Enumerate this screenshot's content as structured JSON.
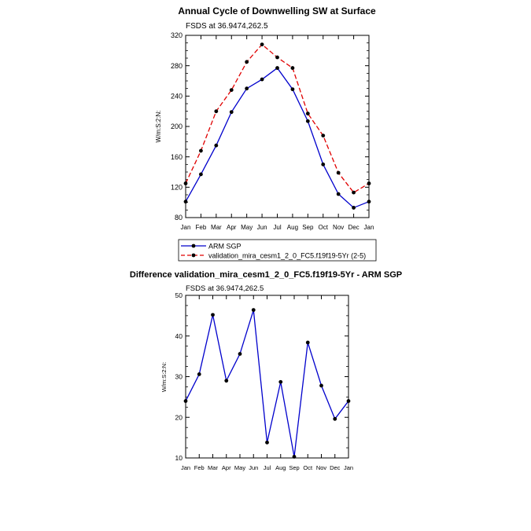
{
  "chart_data": [
    {
      "type": "line",
      "title": "Annual Cycle of Downwelling SW at Surface",
      "subtitle": "FSDS at 36.9474,262.5",
      "xlabel": "",
      "ylabel": "W/m:S:2:N:",
      "categories": [
        "Jan",
        "Feb",
        "Mar",
        "Apr",
        "May",
        "Jun",
        "Jul",
        "Aug",
        "Sep",
        "Oct",
        "Nov",
        "Dec",
        "Jan"
      ],
      "ylim": [
        80,
        320
      ],
      "yticks": [
        80,
        120,
        160,
        200,
        240,
        280,
        320
      ],
      "grid": false,
      "legend": "bottom",
      "series": [
        {
          "name": "ARM SGP",
          "color": "#0000cc",
          "dash": "solid",
          "values": [
            101,
            137,
            175,
            219,
            250,
            262,
            277,
            249,
            207,
            150,
            111,
            93,
            101
          ]
        },
        {
          "name": "validation_mira_cesm1_2_0_FC5.f19f19-5Yr (2-5)",
          "color": "#e00000",
          "dash": "dashed",
          "values": [
            125,
            168,
            220,
            248,
            285,
            308,
            291,
            277,
            217,
            188,
            139,
            113,
            125
          ]
        }
      ]
    },
    {
      "type": "line",
      "title": "Difference validation_mira_cesm1_2_0_FC5.f19f19-5Yr - ARM SGP",
      "subtitle": "FSDS at 36.9474,262.5",
      "xlabel": "",
      "ylabel": "W/m:S:2:N:",
      "categories": [
        "Jan",
        "Feb",
        "Mar",
        "Apr",
        "May",
        "Jun",
        "Jul",
        "Aug",
        "Sep",
        "Oct",
        "Nov",
        "Dec",
        "Jan"
      ],
      "ylim": [
        10,
        50
      ],
      "yticks": [
        10,
        20,
        30,
        40,
        50
      ],
      "grid": false,
      "series": [
        {
          "color": "#0000cc",
          "dash": "solid",
          "values": [
            24,
            30.6,
            45.2,
            29,
            35.6,
            46.4,
            13.8,
            28.7,
            10.3,
            38.4,
            27.8,
            19.6,
            24
          ]
        }
      ]
    }
  ]
}
